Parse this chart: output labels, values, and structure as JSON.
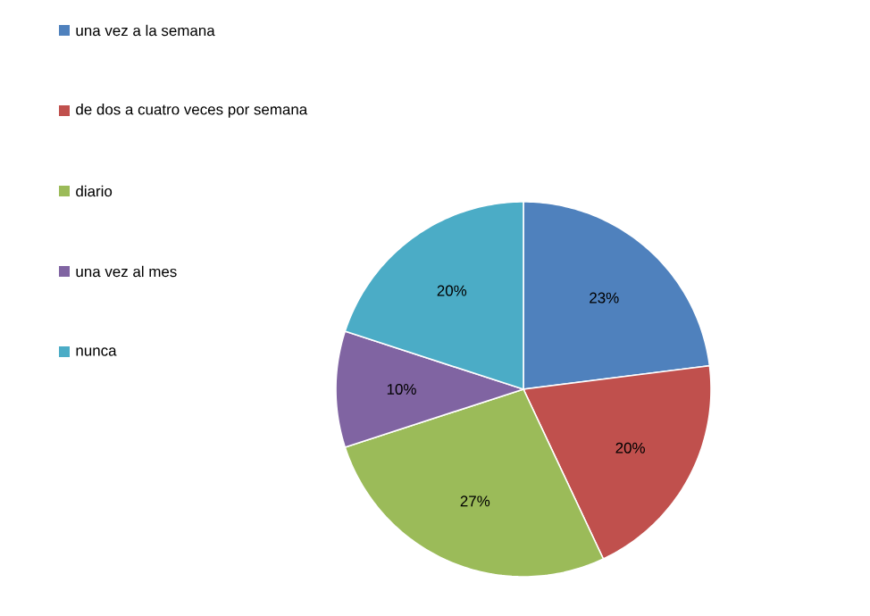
{
  "chart_data": {
    "type": "pie",
    "categories": [
      "una vez a la semana",
      "de dos a cuatro veces por semana",
      "diario",
      "una vez al mes",
      "nunca"
    ],
    "values": [
      23,
      20,
      27,
      10,
      20
    ],
    "colors": [
      "#4f81bd",
      "#c0504d",
      "#9bbb59",
      "#8064a2",
      "#4bacc6"
    ],
    "value_labels": [
      "23%",
      "20%",
      "27%",
      "10%",
      "20%"
    ],
    "legend": "top left"
  }
}
